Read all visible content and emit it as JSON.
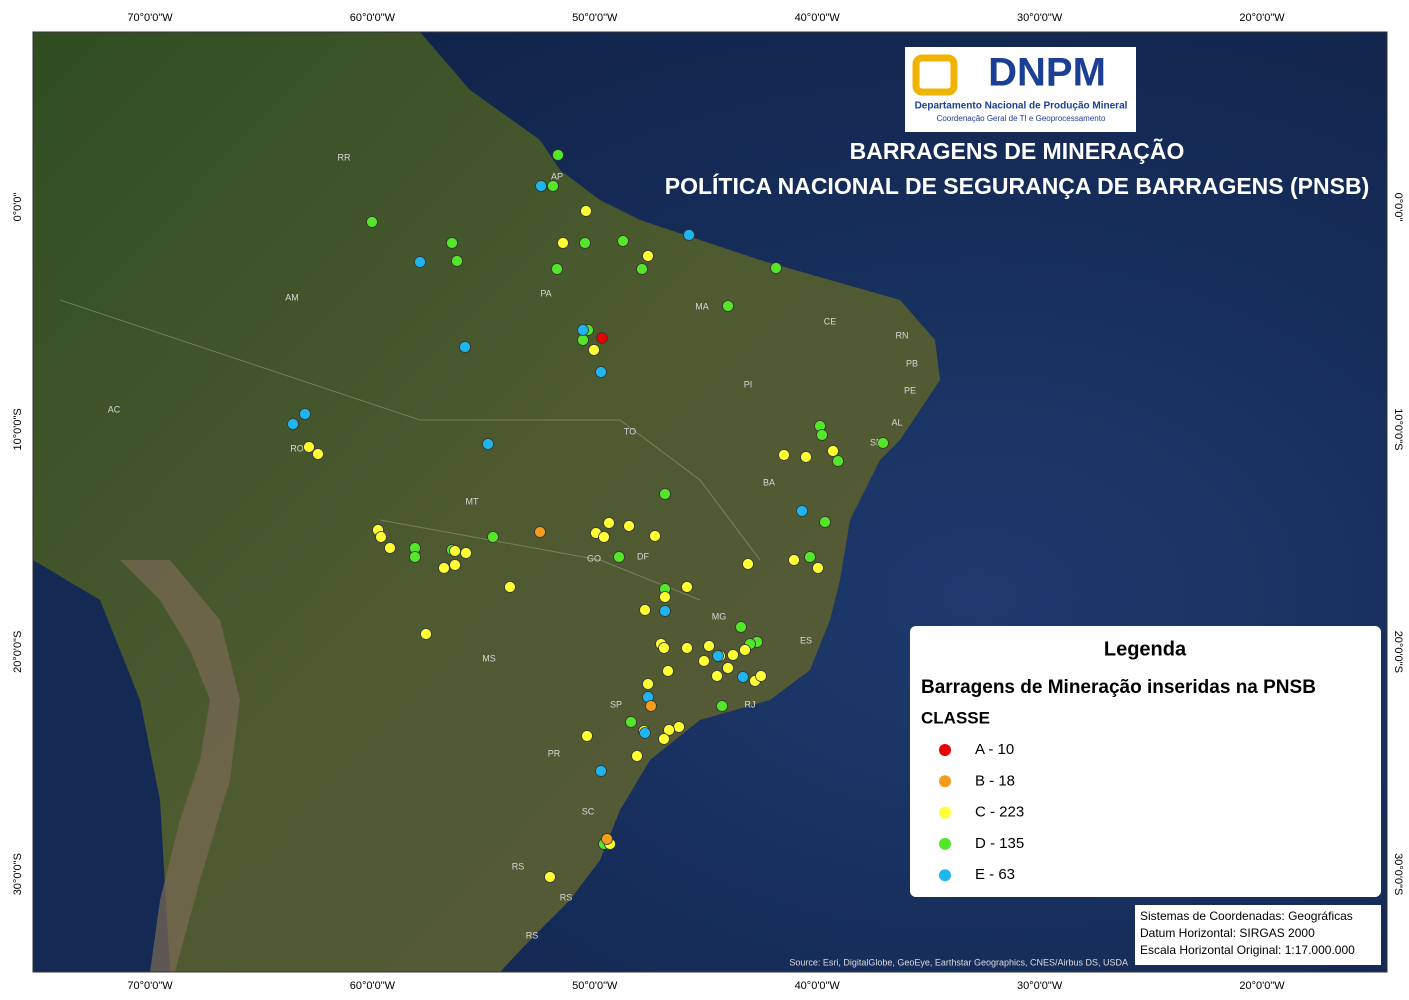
{
  "frame": {
    "top_labels": [
      "70°0'0\"W",
      "60°0'0\"W",
      "50°0'0\"W",
      "40°0'0\"W",
      "30°0'0\"W",
      "20°0'0\"W"
    ],
    "side_labels": [
      "0°0'0\"",
      "10°0'0\"S",
      "20°0'0\"S",
      "30°0'0\"S"
    ]
  },
  "logo": {
    "name": "DNPM",
    "line1": "Departamento Nacional de Produção Mineral",
    "line2": "Coordenação Geral de TI e Geoprocessamento"
  },
  "title": {
    "line1": "BARRAGENS DE MINERAÇÃO",
    "line2": "POLÍTICA NACIONAL DE SEGURANÇA DE BARRAGENS (PNSB)"
  },
  "states": [
    "RR",
    "AP",
    "AM",
    "PA",
    "MA",
    "CE",
    "RN",
    "PB",
    "PE",
    "AL",
    "SE",
    "PI",
    "AC",
    "RO",
    "TO",
    "BA",
    "MT",
    "GO",
    "DF",
    "MG",
    "ES",
    "MS",
    "SP",
    "RJ",
    "PR",
    "SC",
    "RS",
    "RS",
    "RS"
  ],
  "legend": {
    "title": "Legenda",
    "subtitle": "Barragens de Mineração inseridas na PNSB",
    "heading": "CLASSE",
    "items": [
      {
        "label": "A - 10",
        "color": "#e60000"
      },
      {
        "label": "B - 18",
        "color": "#f39c1e"
      },
      {
        "label": "C - 223",
        "color": "#ffff33"
      },
      {
        "label": "D - 135",
        "color": "#55e62a"
      },
      {
        "label": "E - 63",
        "color": "#1fb5ee"
      }
    ]
  },
  "info": [
    "Sistemas de Coordenadas: Geográficas",
    "Datum Horizontal: SIRGAS 2000",
    "Escala Horizontal Original: 1:17.000.000"
  ],
  "source": "Source: Esri, DigitalGlobe, GeoEye, Earthstar Geographics, CNES/Airbus DS, USDA"
}
